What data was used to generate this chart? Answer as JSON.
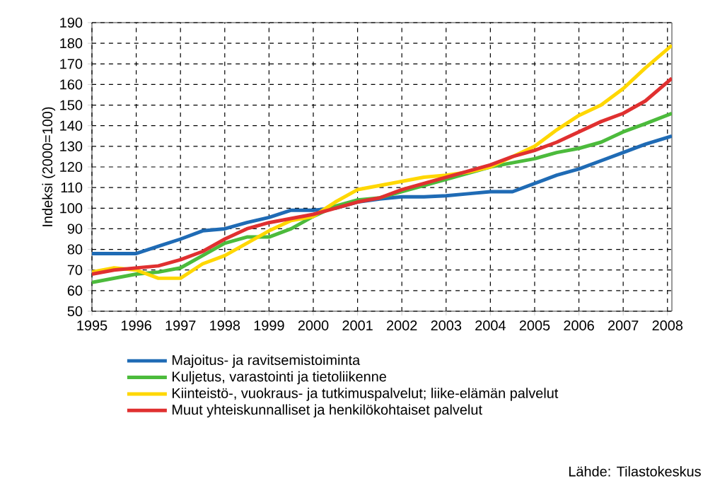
{
  "chart_data": {
    "type": "line",
    "ylabel": "Indeksi (2000=100)",
    "annotations": [
      "Lähde: Tilastokeskus"
    ],
    "xlim": [
      1995,
      2008.1
    ],
    "ylim": [
      50,
      190
    ],
    "xticks": [
      1995,
      1996,
      1997,
      1998,
      1999,
      2000,
      2001,
      2002,
      2003,
      2004,
      2005,
      2006,
      2007,
      2008
    ],
    "yticks": [
      50,
      60,
      70,
      80,
      90,
      100,
      110,
      120,
      130,
      140,
      150,
      160,
      170,
      180,
      190
    ],
    "grid": true,
    "legend": "bottom",
    "marker": "none",
    "line_style": "solid",
    "x": [
      1995,
      1995.5,
      1996,
      1996.5,
      1997,
      1997.5,
      1998,
      1998.5,
      1999,
      1999.5,
      2000,
      2000.5,
      2001,
      2001.5,
      2002,
      2002.5,
      2003,
      2003.5,
      2004,
      2004.5,
      2005,
      2005.5,
      2006,
      2006.5,
      2007,
      2007.5,
      2008.1
    ],
    "series": [
      {
        "name": "Majoitus- ja ravitsemistoiminta",
        "color": "#1f6bb5",
        "values": [
          78,
          78,
          78,
          81.5,
          85,
          89,
          90,
          93,
          95.5,
          99,
          99,
          100,
          103,
          104.5,
          105.5,
          105.5,
          106,
          107,
          108,
          108,
          112,
          116,
          119,
          123,
          127,
          131,
          135
        ]
      },
      {
        "name": "Kuljetus, varastointi ja tietoliikenne",
        "color": "#4cbb3c",
        "values": [
          64,
          66,
          68,
          69,
          71,
          77,
          83,
          86,
          86,
          90,
          96,
          101,
          104,
          105,
          108,
          111,
          114,
          117,
          120,
          122,
          124,
          127,
          129,
          132,
          137,
          141,
          146
        ]
      },
      {
        "name": "Kiinteistö-, vuokraus- ja tutkimuspalvelut; liike-elämän palvelut",
        "color": "#ffd700",
        "values": [
          69,
          71,
          70,
          66,
          66,
          73,
          77,
          83,
          89,
          94,
          96,
          103,
          109,
          111,
          113,
          115,
          116,
          117.5,
          120,
          125,
          130,
          138,
          145,
          150,
          158,
          168,
          179
        ]
      },
      {
        "name": "Muut yhteiskunnalliset ja henkilökohtaiset palvelut",
        "color": "#e03030",
        "values": [
          68,
          70,
          71,
          72,
          75,
          79,
          85,
          90,
          93,
          95,
          97,
          100,
          103,
          105,
          109,
          112,
          115,
          118,
          121,
          125,
          128,
          132,
          137,
          142,
          146,
          152,
          163
        ]
      }
    ]
  }
}
